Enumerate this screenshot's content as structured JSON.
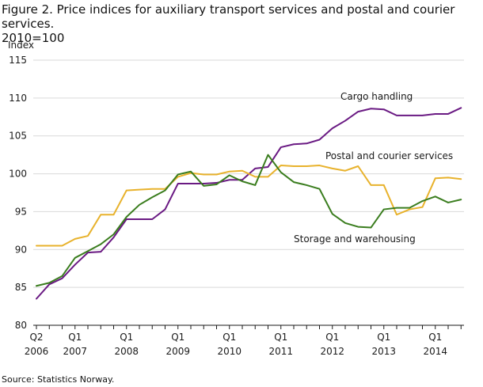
{
  "title_line1": "Figure 2. Price indices for auxiliary transport services and postal and courier services.",
  "title_line2": "2010=100",
  "source": "Source: Statistics Norway.",
  "chart_data": {
    "type": "line",
    "ylabel": "Index",
    "ylim": [
      80,
      115
    ],
    "yticks": [
      80,
      85,
      90,
      95,
      100,
      105,
      110,
      115
    ],
    "grid": true,
    "xtick_labels": [
      {
        "q": "Q2",
        "year": "2006"
      },
      {
        "q": "Q1",
        "year": "2007"
      },
      {
        "q": "Q1",
        "year": "2008"
      },
      {
        "q": "Q1",
        "year": "2009"
      },
      {
        "q": "Q1",
        "year": "2010"
      },
      {
        "q": "Q1",
        "year": "2011"
      },
      {
        "q": "Q1",
        "year": "2012"
      },
      {
        "q": "Q1",
        "year": "2013"
      },
      {
        "q": "Q1",
        "year": "2014"
      }
    ],
    "x": [
      "2006Q2",
      "2006Q3",
      "2006Q4",
      "2007Q1",
      "2007Q2",
      "2007Q3",
      "2007Q4",
      "2008Q1",
      "2008Q2",
      "2008Q3",
      "2008Q4",
      "2009Q1",
      "2009Q2",
      "2009Q3",
      "2009Q4",
      "2010Q1",
      "2010Q2",
      "2010Q3",
      "2010Q4",
      "2011Q1",
      "2011Q2",
      "2011Q3",
      "2011Q4",
      "2012Q1",
      "2012Q2",
      "2012Q3",
      "2012Q4",
      "2013Q1",
      "2013Q2",
      "2013Q3",
      "2013Q4",
      "2014Q1",
      "2014Q2",
      "2014Q3"
    ],
    "series": [
      {
        "name": "Cargo handling",
        "color": "#6a1a83",
        "values": [
          83.5,
          85.4,
          86.2,
          88.0,
          89.6,
          89.7,
          91.6,
          94.0,
          94.0,
          94.0,
          95.3,
          98.7,
          98.7,
          98.7,
          98.8,
          99.2,
          99.2,
          100.7,
          100.9,
          103.5,
          103.9,
          104.0,
          104.5,
          106.0,
          107.0,
          108.2,
          108.6,
          108.5,
          107.7,
          107.7,
          107.7,
          107.9,
          107.9,
          108.7
        ]
      },
      {
        "name": "Postal and courier services",
        "color": "#e8b22c",
        "values": [
          90.5,
          90.5,
          90.5,
          91.4,
          91.8,
          94.6,
          94.6,
          97.8,
          97.9,
          98.0,
          98.0,
          99.6,
          100.1,
          99.9,
          99.9,
          100.3,
          100.4,
          99.6,
          99.6,
          101.1,
          101.0,
          101.0,
          101.1,
          100.7,
          100.4,
          101.0,
          98.5,
          98.5,
          94.6,
          95.3,
          95.6,
          99.4,
          99.5,
          99.3
        ]
      },
      {
        "name": "Storage and warehousing",
        "color": "#3a7d1e",
        "values": [
          85.2,
          85.6,
          86.5,
          88.9,
          89.8,
          90.7,
          92.0,
          94.3,
          95.9,
          96.9,
          97.8,
          99.9,
          100.3,
          98.4,
          98.6,
          99.8,
          99.0,
          98.5,
          102.5,
          100.2,
          98.9,
          98.5,
          98.0,
          94.7,
          93.5,
          93.0,
          92.9,
          95.3,
          95.5,
          95.5,
          96.4,
          97.0,
          96.2,
          96.6
        ]
      }
    ]
  }
}
